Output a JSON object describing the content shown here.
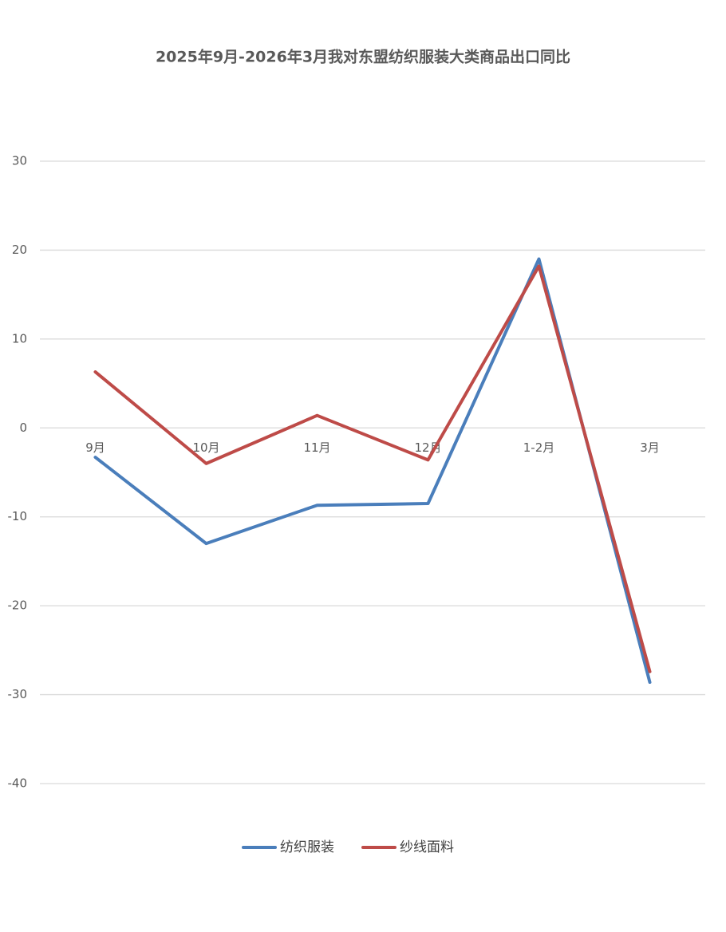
{
  "chart_data": {
    "type": "line",
    "title": "2025年9月-2026年3月我对东盟纺织服装大类商品出口同比",
    "categories": [
      "9月",
      "10月",
      "11月",
      "12月",
      "1-2月",
      "3月"
    ],
    "series": [
      {
        "name": "纺织服装",
        "color": "#4a7ebb",
        "values": [
          -3.3,
          -13.0,
          -8.7,
          -8.5,
          19.0,
          -28.6
        ]
      },
      {
        "name": "纱线面料",
        "color": "#be4b48",
        "values": [
          6.3,
          -4.0,
          1.4,
          -3.6,
          18.2,
          -27.4
        ]
      }
    ],
    "ylim": [
      -40,
      30
    ],
    "yticks": [
      -40,
      -30,
      -20,
      -10,
      0,
      10,
      20,
      30
    ],
    "grid": true,
    "legend": "bottom"
  }
}
